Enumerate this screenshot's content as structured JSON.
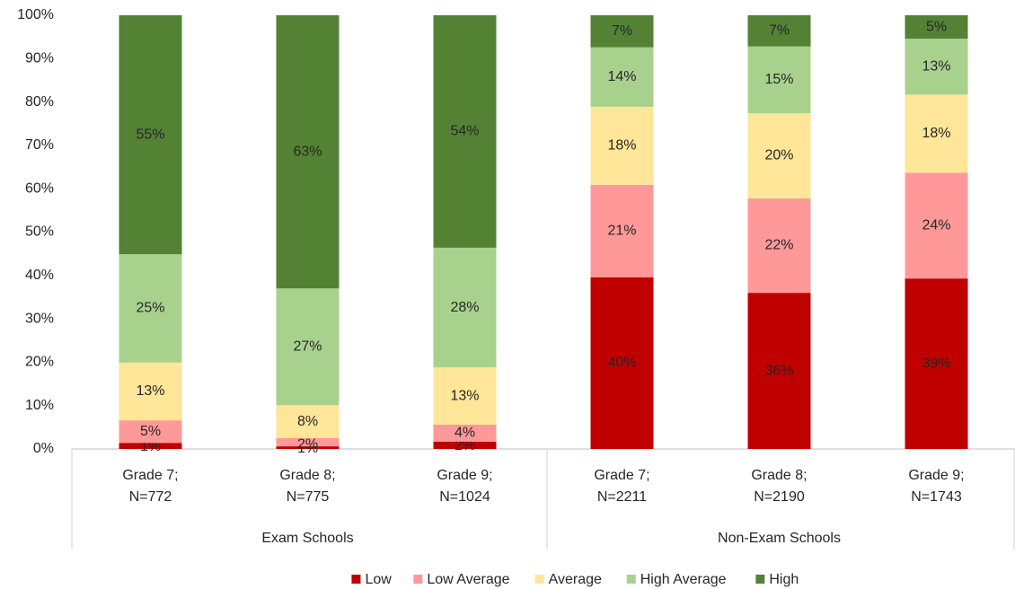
{
  "chart_data": {
    "type": "stacked_bar",
    "categories": [
      [
        "Grade 7;",
        "N=772"
      ],
      [
        "Grade 8;",
        "N=775"
      ],
      [
        "Grade 9;",
        "N=1024"
      ],
      [
        "Grade 7;",
        "N=2211"
      ],
      [
        "Grade 8;",
        "N=2190"
      ],
      [
        "Grade 9;",
        "N=1743"
      ]
    ],
    "groups": [
      "Exam Schools",
      "Non-Exam Schools"
    ],
    "series": [
      {
        "name": "Low",
        "color": "#c00000",
        "values": [
          1.4,
          0.6,
          1.7,
          39.6,
          36.0,
          39.3
        ],
        "value_labels": [
          "1%",
          "1%",
          "2%",
          "40%",
          "36%",
          "39%"
        ]
      },
      {
        "name": "Low Average",
        "color": "#ff9999",
        "values": [
          5.2,
          1.9,
          3.9,
          21.3,
          21.8,
          24.4
        ],
        "value_labels": [
          "5%",
          "2%",
          "4%",
          "21%",
          "22%",
          "24%"
        ]
      },
      {
        "name": "Average",
        "color": "#ffe699",
        "values": [
          13.3,
          7.6,
          13.2,
          18.0,
          19.6,
          18.0
        ],
        "value_labels": [
          "13%",
          "8%",
          "13%",
          "18%",
          "20%",
          "18%"
        ]
      },
      {
        "name": "High Average",
        "color": "#a9d18e",
        "values": [
          25.0,
          26.9,
          27.6,
          13.7,
          15.4,
          12.9
        ],
        "value_labels": [
          "25%",
          "27%",
          "28%",
          "14%",
          "15%",
          "13%"
        ]
      },
      {
        "name": "High",
        "color": "#548235",
        "values": [
          55.1,
          63.0,
          53.6,
          7.4,
          7.2,
          5.4
        ],
        "value_labels": [
          "55%",
          "63%",
          "54%",
          "7%",
          "7%",
          "5%"
        ]
      }
    ],
    "ylim": [
      0,
      100
    ],
    "yticks": [
      {
        "value": 0,
        "label": "0%"
      },
      {
        "value": 10,
        "label": "10%"
      },
      {
        "value": 20,
        "label": "20%"
      },
      {
        "value": 30,
        "label": "30%"
      },
      {
        "value": 40,
        "label": "40%"
      },
      {
        "value": 50,
        "label": "50%"
      },
      {
        "value": 60,
        "label": "60%"
      },
      {
        "value": 70,
        "label": "70%"
      },
      {
        "value": 80,
        "label": "80%"
      },
      {
        "value": 90,
        "label": "90%"
      },
      {
        "value": 100,
        "label": "100%"
      }
    ],
    "legend": "bottom"
  }
}
